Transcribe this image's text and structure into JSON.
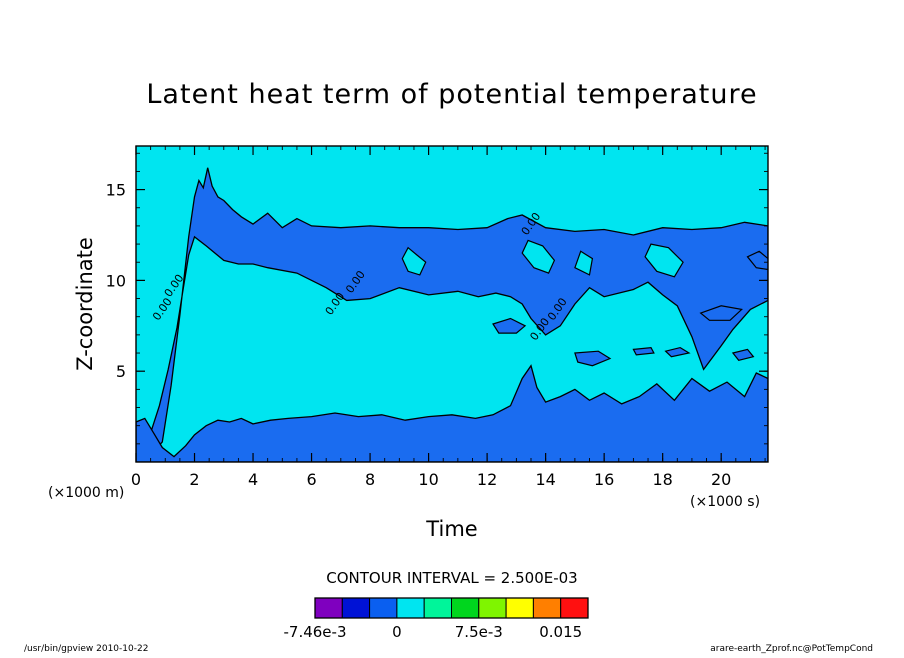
{
  "chart_data": {
    "type": "heatmap",
    "title": "Latent heat term of potential temperature",
    "xlabel": "Time",
    "ylabel": "Z-coordinate",
    "x_unit": "(×1000 s)",
    "y_unit": "(×1000 m)",
    "xlim": [
      0,
      21.6
    ],
    "ylim": [
      0,
      17.4
    ],
    "x_ticks": [
      0,
      2,
      4,
      6,
      8,
      10,
      12,
      14,
      16,
      18,
      20
    ],
    "y_ticks": [
      5,
      10,
      15
    ],
    "x_tick_labels": [
      "0",
      "2",
      "4",
      "6",
      "8",
      "10",
      "12",
      "14",
      "16",
      "18",
      "20"
    ],
    "y_tick_labels": [
      "5",
      "10",
      "15"
    ],
    "contour_interval_text": "CONTOUR INTERVAL = 2.500E-03",
    "background_level": 0,
    "background_color": "#00e5f0",
    "negative_color": "#1a6cf0",
    "contour_label": "0.00",
    "colorbar": {
      "colors": [
        "#7f00bf",
        "#0012d6",
        "#0a5ff0",
        "#00e5f0",
        "#00f59a",
        "#00d61e",
        "#7ff500",
        "#ffff00",
        "#ff7f00",
        "#ff1010"
      ],
      "labels": [
        "-7.46e-3",
        "0",
        "7.5e-3",
        "0.015"
      ],
      "label_slots": [
        0,
        3,
        6,
        9
      ]
    },
    "upper_band": [
      [
        0,
        0.2
      ],
      [
        0.5,
        0.4
      ],
      [
        0.9,
        1.1
      ],
      [
        1.2,
        4.2
      ],
      [
        1.5,
        8.1
      ],
      [
        1.8,
        12.4
      ],
      [
        2.0,
        14.6
      ],
      [
        2.15,
        15.5
      ],
      [
        2.3,
        15.1
      ],
      [
        2.45,
        16.2
      ],
      [
        2.6,
        15.2
      ],
      [
        2.8,
        14.6
      ],
      [
        3.0,
        14.4
      ],
      [
        3.3,
        13.9
      ],
      [
        3.6,
        13.5
      ],
      [
        4.0,
        13.1
      ],
      [
        4.5,
        13.7
      ],
      [
        5.0,
        12.9
      ],
      [
        5.5,
        13.4
      ],
      [
        6.0,
        13.0
      ],
      [
        7.0,
        12.9
      ],
      [
        8.0,
        13.0
      ],
      [
        9.0,
        12.9
      ],
      [
        10.0,
        12.9
      ],
      [
        11.0,
        12.8
      ],
      [
        12.0,
        12.9
      ],
      [
        12.7,
        13.4
      ],
      [
        13.2,
        13.6
      ],
      [
        14.0,
        12.9
      ],
      [
        15.0,
        12.7
      ],
      [
        16.0,
        12.8
      ],
      [
        17.0,
        12.5
      ],
      [
        18.0,
        12.9
      ],
      [
        19.0,
        12.8
      ],
      [
        20.0,
        12.9
      ],
      [
        20.8,
        13.2
      ],
      [
        21.6,
        13.0
      ]
    ],
    "upper_band_bottom": [
      [
        21.6,
        8.9
      ],
      [
        21.0,
        8.4
      ],
      [
        20.4,
        7.3
      ],
      [
        20.0,
        6.4
      ],
      [
        19.4,
        5.1
      ],
      [
        19.0,
        6.9
      ],
      [
        18.5,
        8.6
      ],
      [
        18.0,
        9.2
      ],
      [
        17.5,
        9.9
      ],
      [
        17.0,
        9.5
      ],
      [
        16.0,
        9.1
      ],
      [
        15.5,
        9.6
      ],
      [
        15.0,
        8.7
      ],
      [
        14.5,
        7.5
      ],
      [
        14.0,
        7.0
      ],
      [
        13.5,
        7.9
      ],
      [
        13.2,
        8.7
      ],
      [
        12.8,
        9.1
      ],
      [
        12.3,
        9.3
      ],
      [
        11.7,
        9.1
      ],
      [
        11.0,
        9.4
      ],
      [
        10.0,
        9.2
      ],
      [
        9.0,
        9.6
      ],
      [
        8.0,
        9.0
      ],
      [
        7.2,
        8.9
      ],
      [
        6.5,
        9.6
      ],
      [
        5.5,
        10.4
      ],
      [
        4.5,
        10.7
      ],
      [
        4.0,
        10.9
      ],
      [
        3.5,
        10.9
      ],
      [
        3.0,
        11.1
      ],
      [
        2.4,
        11.9
      ],
      [
        2.0,
        12.4
      ],
      [
        1.8,
        11.4
      ],
      [
        1.6,
        9.4
      ],
      [
        1.4,
        7.4
      ],
      [
        1.1,
        5.1
      ],
      [
        0.8,
        3.1
      ],
      [
        0.5,
        1.6
      ],
      [
        0.2,
        0.9
      ],
      [
        0,
        0.6
      ]
    ],
    "lower_band": [
      [
        0,
        2.2
      ],
      [
        0.3,
        2.4
      ],
      [
        0.6,
        1.6
      ],
      [
        0.9,
        0.8
      ],
      [
        1.3,
        0.3
      ],
      [
        1.7,
        0.9
      ],
      [
        2.0,
        1.5
      ],
      [
        2.4,
        2.0
      ],
      [
        2.8,
        2.3
      ],
      [
        3.2,
        2.2
      ],
      [
        3.6,
        2.4
      ],
      [
        4.0,
        2.1
      ],
      [
        4.6,
        2.3
      ],
      [
        5.2,
        2.4
      ],
      [
        6.0,
        2.5
      ],
      [
        6.8,
        2.7
      ],
      [
        7.6,
        2.5
      ],
      [
        8.4,
        2.6
      ],
      [
        9.2,
        2.3
      ],
      [
        10.0,
        2.5
      ],
      [
        10.8,
        2.6
      ],
      [
        11.6,
        2.4
      ],
      [
        12.2,
        2.6
      ],
      [
        12.8,
        3.1
      ],
      [
        13.2,
        4.6
      ],
      [
        13.5,
        5.3
      ],
      [
        13.7,
        4.1
      ],
      [
        14.0,
        3.3
      ],
      [
        14.5,
        3.6
      ],
      [
        15.0,
        4.0
      ],
      [
        15.5,
        3.4
      ],
      [
        16.0,
        3.8
      ],
      [
        16.6,
        3.2
      ],
      [
        17.2,
        3.6
      ],
      [
        17.8,
        4.3
      ],
      [
        18.4,
        3.4
      ],
      [
        19.0,
        4.6
      ],
      [
        19.6,
        3.9
      ],
      [
        20.2,
        4.4
      ],
      [
        20.8,
        3.6
      ],
      [
        21.2,
        4.9
      ],
      [
        21.6,
        4.6
      ]
    ],
    "holes": [
      [
        [
          9.3,
          11.8
        ],
        [
          9.6,
          11.4
        ],
        [
          9.9,
          11.0
        ],
        [
          9.7,
          10.3
        ],
        [
          9.3,
          10.5
        ],
        [
          9.1,
          11.2
        ]
      ],
      [
        [
          13.4,
          12.2
        ],
        [
          13.9,
          11.9
        ],
        [
          14.3,
          11.1
        ],
        [
          14.1,
          10.4
        ],
        [
          13.6,
          10.7
        ],
        [
          13.2,
          11.5
        ]
      ],
      [
        [
          17.6,
          12.0
        ],
        [
          18.2,
          11.8
        ],
        [
          18.7,
          11.0
        ],
        [
          18.4,
          10.2
        ],
        [
          17.8,
          10.5
        ],
        [
          17.4,
          11.3
        ]
      ],
      [
        [
          15.2,
          11.6
        ],
        [
          15.6,
          11.2
        ],
        [
          15.5,
          10.3
        ],
        [
          15.0,
          10.7
        ]
      ]
    ],
    "blobs": [
      [
        [
          12.2,
          7.6
        ],
        [
          12.8,
          7.9
        ],
        [
          13.3,
          7.5
        ],
        [
          13.0,
          7.1
        ],
        [
          12.4,
          7.1
        ]
      ],
      [
        [
          15.0,
          6.0
        ],
        [
          15.8,
          6.1
        ],
        [
          16.2,
          5.7
        ],
        [
          15.6,
          5.3
        ],
        [
          15.1,
          5.5
        ]
      ],
      [
        [
          17.0,
          6.2
        ],
        [
          17.6,
          6.3
        ],
        [
          17.7,
          6.0
        ],
        [
          17.1,
          5.9
        ]
      ],
      [
        [
          18.1,
          6.1
        ],
        [
          18.6,
          6.3
        ],
        [
          18.9,
          6.0
        ],
        [
          18.3,
          5.8
        ]
      ],
      [
        [
          20.4,
          6.0
        ],
        [
          20.9,
          6.2
        ],
        [
          21.1,
          5.8
        ],
        [
          20.6,
          5.6
        ]
      ],
      [
        [
          19.3,
          8.2
        ],
        [
          20.0,
          8.6
        ],
        [
          20.7,
          8.4
        ],
        [
          20.3,
          7.8
        ],
        [
          19.6,
          7.8
        ]
      ],
      [
        [
          20.9,
          11.3
        ],
        [
          21.3,
          11.6
        ],
        [
          21.6,
          11.2
        ],
        [
          21.6,
          10.6
        ],
        [
          21.2,
          10.7
        ]
      ]
    ],
    "label_positions": [
      [
        1.0,
        8.3
      ],
      [
        1.4,
        9.6
      ],
      [
        6.9,
        8.6
      ],
      [
        7.6,
        9.8
      ],
      [
        13.6,
        13.0
      ],
      [
        13.9,
        7.2
      ],
      [
        14.5,
        8.3
      ]
    ]
  },
  "footer": {
    "left": "/usr/bin/gpview  2010-10-22",
    "right": "arare-earth_Zprof.nc@PotTempCond"
  }
}
